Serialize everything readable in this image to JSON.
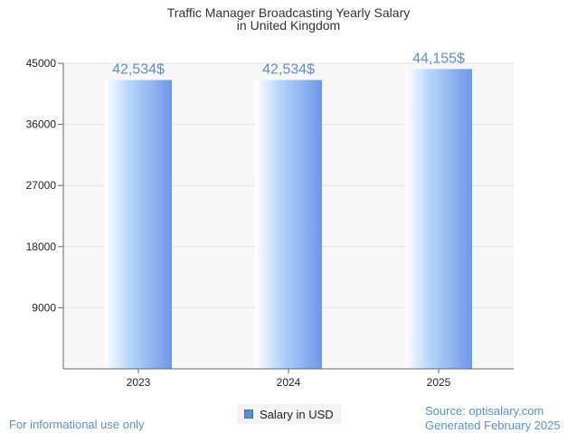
{
  "chart_data": {
    "type": "bar",
    "title": [
      "Traffic Manager Broadcasting Yearly Salary",
      "in United Kingdom"
    ],
    "categories": [
      "2023",
      "2024",
      "2025"
    ],
    "series": [
      {
        "name": "Salary in USD",
        "values": [
          42534,
          42534,
          44155
        ]
      }
    ],
    "data_labels": [
      "42,534$",
      "42,534$",
      "44,155$"
    ],
    "y_ticks": [
      9000,
      18000,
      27000,
      36000,
      45000
    ],
    "ylim": [
      0,
      45000
    ],
    "xlabel": "",
    "ylabel": "",
    "grid": true,
    "legend_position": "bottom-center"
  },
  "colors": {
    "bar_light": "#ffffff",
    "bar_mid": "#b8d8fb",
    "bar_dark": "#6e97e8",
    "label": "#5b8fd1",
    "grid": "#e2e2e2",
    "plot_bg": "#f7f7f7"
  },
  "footer": {
    "disclaimer": "For informational use only",
    "source": "Source: optisalary.com",
    "generated": "Generated February 2025"
  },
  "legend": {
    "label": "Salary in USD"
  }
}
